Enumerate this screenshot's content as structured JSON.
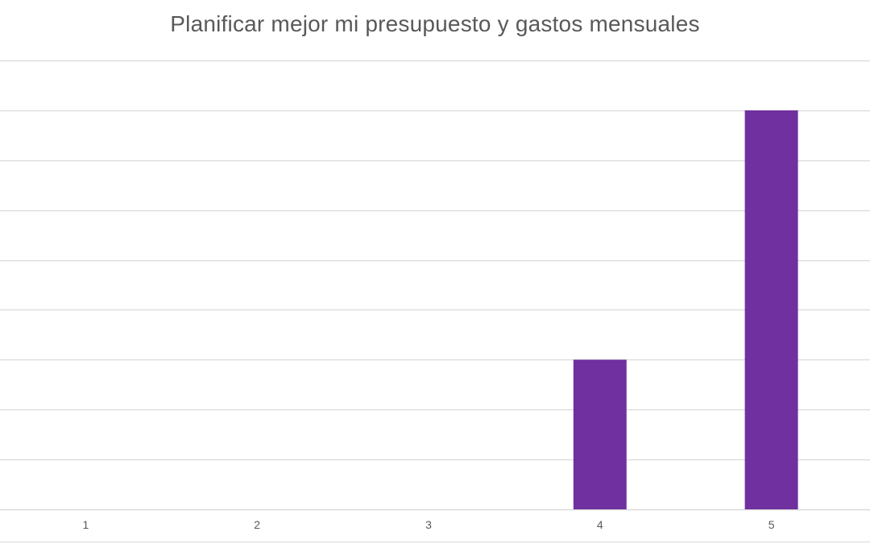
{
  "chart_data": {
    "type": "bar",
    "title": "Planificar mejor mi presupuesto y gastos mensuales",
    "xlabel": "",
    "ylabel": "",
    "categories": [
      "1",
      "2",
      "3",
      "4",
      "5"
    ],
    "values": [
      0,
      0,
      0,
      3,
      8
    ],
    "ylim": [
      0,
      9
    ],
    "y_gridline_step": 1,
    "y_tick_labels_visible": false,
    "grid": true,
    "legend": "none",
    "bar_color": "#7030A0",
    "gridline_color": "#D9D9D9",
    "title_color": "#595959",
    "tick_label_color": "#595959"
  }
}
